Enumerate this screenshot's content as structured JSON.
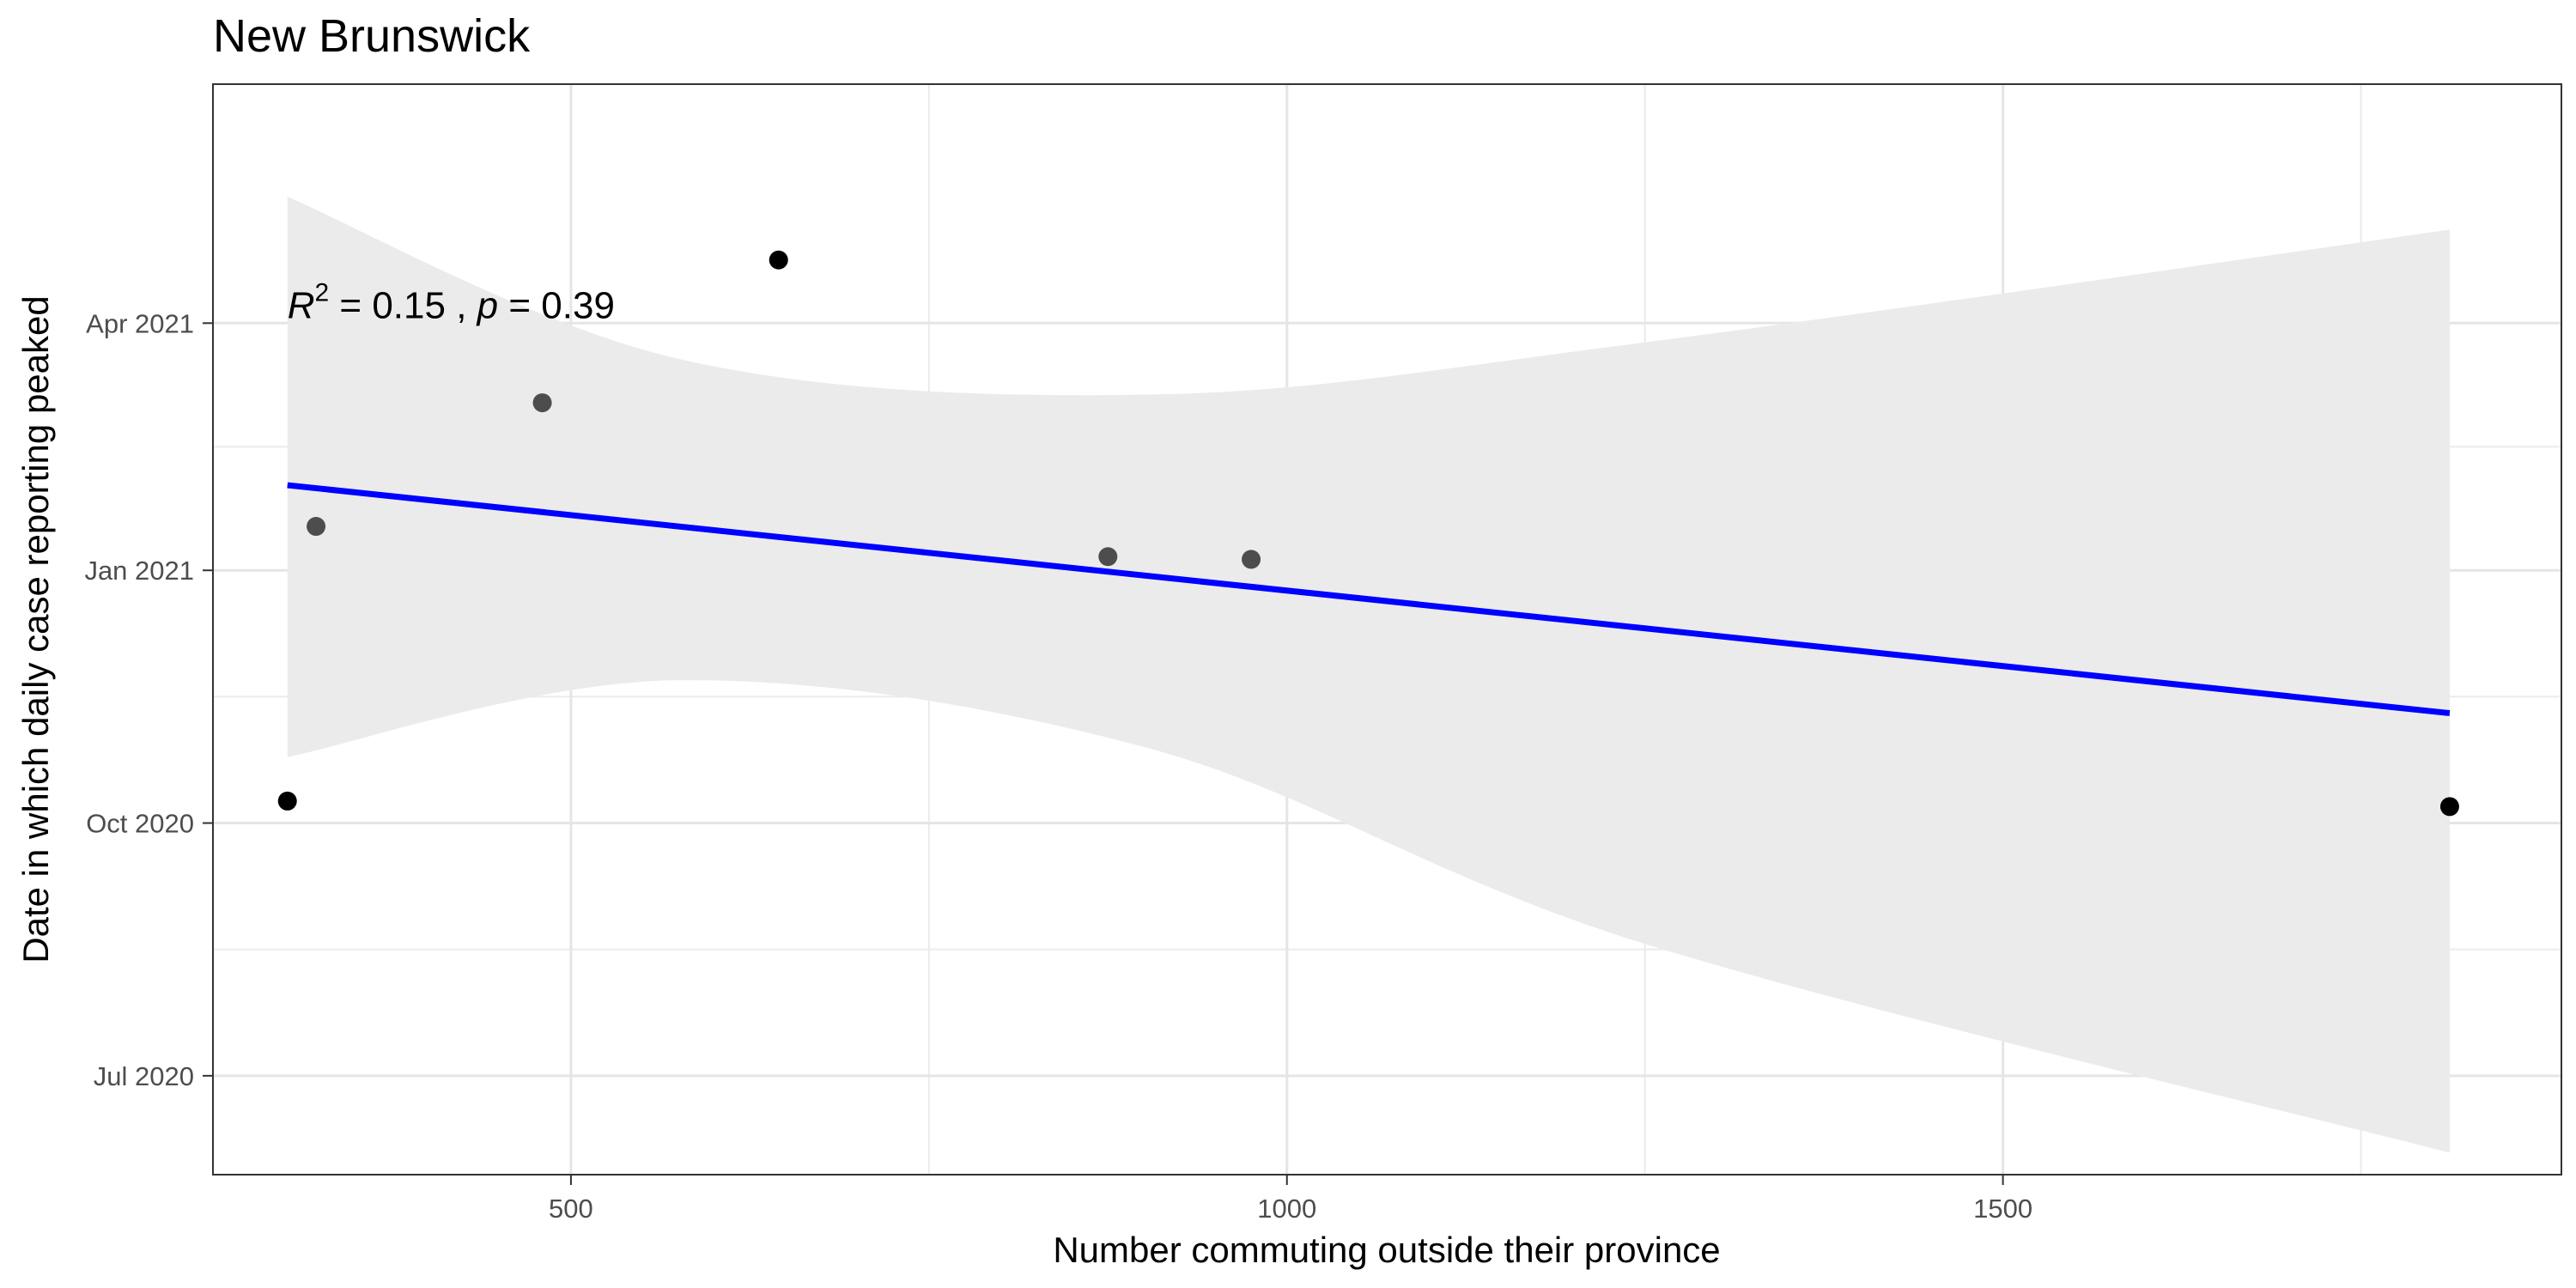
{
  "chart_data": {
    "type": "scatter",
    "title": "New Brunswick",
    "xlabel": "Number commuting outside their province",
    "ylabel": "Date in which daily case reporting peaked",
    "xlim": [
      250,
      1890
    ],
    "ylim": [
      "2020-05-26",
      "2021-06-27"
    ],
    "x_ticks": [
      500,
      1000,
      1500
    ],
    "x_tick_labels": [
      "500",
      "1000",
      "1500"
    ],
    "x_minor_ticks": [
      250,
      750,
      1250,
      1750
    ],
    "y_ticks": [
      "2020-07-01",
      "2020-10-01",
      "2021-01-01",
      "2021-04-01"
    ],
    "y_tick_labels": [
      "Jul 2020",
      "Oct 2020",
      "Jan 2021",
      "Apr 2021"
    ],
    "y_minor_ticks": [
      "2020-08-16",
      "2020-11-16",
      "2021-02-15"
    ],
    "grid": true,
    "points": [
      {
        "x": 302,
        "y": "2020-10-09",
        "color": "#000000"
      },
      {
        "x": 322,
        "y": "2021-01-17",
        "color": "#4d4d4d"
      },
      {
        "x": 480,
        "y": "2021-03-03",
        "color": "#4d4d4d"
      },
      {
        "x": 645,
        "y": "2021-04-24",
        "color": "#000000"
      },
      {
        "x": 875,
        "y": "2021-01-06",
        "color": "#4d4d4d"
      },
      {
        "x": 975,
        "y": "2021-01-05",
        "color": "#4d4d4d"
      },
      {
        "x": 1812,
        "y": "2020-10-07",
        "color": "#000000"
      }
    ],
    "fit_line": {
      "x": [
        302,
        1812
      ],
      "y": [
        "2021-02-01",
        "2020-11-10"
      ],
      "color": "#0000ff"
    },
    "confidence_band": {
      "fill": "#ebebeb",
      "x": [
        302,
        575,
        905,
        1250,
        1812
      ],
      "upper": [
        "2021-05-17",
        "2021-03-19",
        "2021-03-06",
        "2021-03-25",
        "2021-05-05"
      ],
      "lower": [
        "2020-10-25",
        "2020-11-22",
        "2020-10-28",
        "2020-08-18",
        "2020-06-03"
      ]
    },
    "annotation": {
      "symbol_r": "R",
      "superscript": "2",
      "eq_text": " = 0.15 , ",
      "symbol_p": "p",
      "p_text": " = 0.39",
      "x": 302,
      "y": "2021-04-01"
    }
  }
}
